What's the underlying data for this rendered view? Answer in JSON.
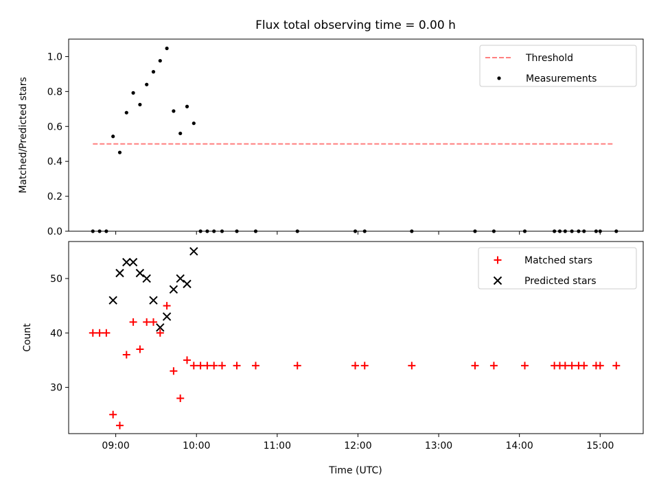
{
  "chart_data": [
    {
      "type": "scatter",
      "title": "Flux total observing time = 0.00 h",
      "xlabel": "",
      "ylabel": "Matched/Predicted stars",
      "xlim": [
        "08:25",
        "15:32"
      ],
      "ylim": [
        0,
        1.1
      ],
      "yticks": [
        "0.0",
        "0.2",
        "0.4",
        "0.6",
        "0.8",
        "1.0"
      ],
      "xticks": [
        "09:00",
        "10:00",
        "11:00",
        "12:00",
        "13:00",
        "14:00",
        "15:00"
      ],
      "legend_position": "top-right",
      "series": [
        {
          "name": "Threshold",
          "kind": "dashed-line",
          "color": "#ff7f7f",
          "points": [
            [
              "08:43",
              0.5
            ],
            [
              "15:10",
              0.5
            ]
          ]
        },
        {
          "name": "Measurements",
          "kind": "dots",
          "color": "#000000",
          "points": [
            [
              "08:43",
              0.0
            ],
            [
              "08:48",
              0.0
            ],
            [
              "08:53",
              0.0
            ],
            [
              "08:58",
              0.543
            ],
            [
              "09:03",
              0.451
            ],
            [
              "09:08",
              0.679
            ],
            [
              "09:13",
              0.792
            ],
            [
              "09:18",
              0.725
            ],
            [
              "09:23",
              0.84
            ],
            [
              "09:28",
              0.913
            ],
            [
              "09:33",
              0.976
            ],
            [
              "09:38",
              1.047
            ],
            [
              "09:43",
              0.688
            ],
            [
              "09:48",
              0.56
            ],
            [
              "09:53",
              0.714
            ],
            [
              "09:58",
              0.618
            ],
            [
              "10:03",
              0.0
            ],
            [
              "10:08",
              0.0
            ],
            [
              "10:13",
              0.0
            ],
            [
              "10:19",
              0.0
            ],
            [
              "10:30",
              0.0
            ],
            [
              "10:44",
              0.0
            ],
            [
              "11:15",
              0.0
            ],
            [
              "11:58",
              0.0
            ],
            [
              "12:05",
              0.0
            ],
            [
              "12:40",
              0.0
            ],
            [
              "13:27",
              0.0
            ],
            [
              "13:41",
              0.0
            ],
            [
              "14:04",
              0.0
            ],
            [
              "14:26",
              0.0
            ],
            [
              "14:30",
              0.0
            ],
            [
              "14:34",
              0.0
            ],
            [
              "14:39",
              0.0
            ],
            [
              "14:44",
              0.0
            ],
            [
              "14:48",
              0.0
            ],
            [
              "14:57",
              0.0
            ],
            [
              "15:00",
              0.0
            ],
            [
              "15:12",
              0.0
            ]
          ]
        }
      ]
    },
    {
      "type": "scatter",
      "title": "",
      "xlabel": "Time (UTC)",
      "ylabel": "Count",
      "xlim": [
        "08:25",
        "15:32"
      ],
      "ylim": [
        21.5,
        56.8
      ],
      "yticks": [
        "30",
        "40",
        "50"
      ],
      "xticks": [
        "09:00",
        "10:00",
        "11:00",
        "12:00",
        "13:00",
        "14:00",
        "15:00"
      ],
      "legend_position": "top-right",
      "series": [
        {
          "name": "Matched stars",
          "kind": "plus",
          "color": "#ff0000",
          "points": [
            [
              "08:43",
              40
            ],
            [
              "08:48",
              40
            ],
            [
              "08:53",
              40
            ],
            [
              "08:58",
              25
            ],
            [
              "09:03",
              23
            ],
            [
              "09:08",
              36
            ],
            [
              "09:13",
              42
            ],
            [
              "09:18",
              37
            ],
            [
              "09:23",
              42
            ],
            [
              "09:28",
              42
            ],
            [
              "09:33",
              40
            ],
            [
              "09:38",
              45
            ],
            [
              "09:43",
              33
            ],
            [
              "09:48",
              28
            ],
            [
              "09:53",
              35
            ],
            [
              "09:58",
              34
            ],
            [
              "10:03",
              34
            ],
            [
              "10:08",
              34
            ],
            [
              "10:13",
              34
            ],
            [
              "10:19",
              34
            ],
            [
              "10:30",
              34
            ],
            [
              "10:44",
              34
            ],
            [
              "11:15",
              34
            ],
            [
              "11:58",
              34
            ],
            [
              "12:05",
              34
            ],
            [
              "12:40",
              34
            ],
            [
              "13:27",
              34
            ],
            [
              "13:41",
              34
            ],
            [
              "14:04",
              34
            ],
            [
              "14:26",
              34
            ],
            [
              "14:30",
              34
            ],
            [
              "14:34",
              34
            ],
            [
              "14:39",
              34
            ],
            [
              "14:44",
              34
            ],
            [
              "14:48",
              34
            ],
            [
              "14:57",
              34
            ],
            [
              "15:00",
              34
            ],
            [
              "15:12",
              34
            ]
          ]
        },
        {
          "name": "Predicted stars",
          "kind": "x",
          "color": "#000000",
          "points": [
            [
              "08:58",
              46
            ],
            [
              "09:03",
              51
            ],
            [
              "09:08",
              53
            ],
            [
              "09:13",
              53
            ],
            [
              "09:18",
              51
            ],
            [
              "09:23",
              50
            ],
            [
              "09:28",
              46
            ],
            [
              "09:33",
              41
            ],
            [
              "09:38",
              43
            ],
            [
              "09:43",
              48
            ],
            [
              "09:48",
              50
            ],
            [
              "09:53",
              49
            ],
            [
              "09:58",
              55
            ]
          ]
        }
      ]
    }
  ]
}
